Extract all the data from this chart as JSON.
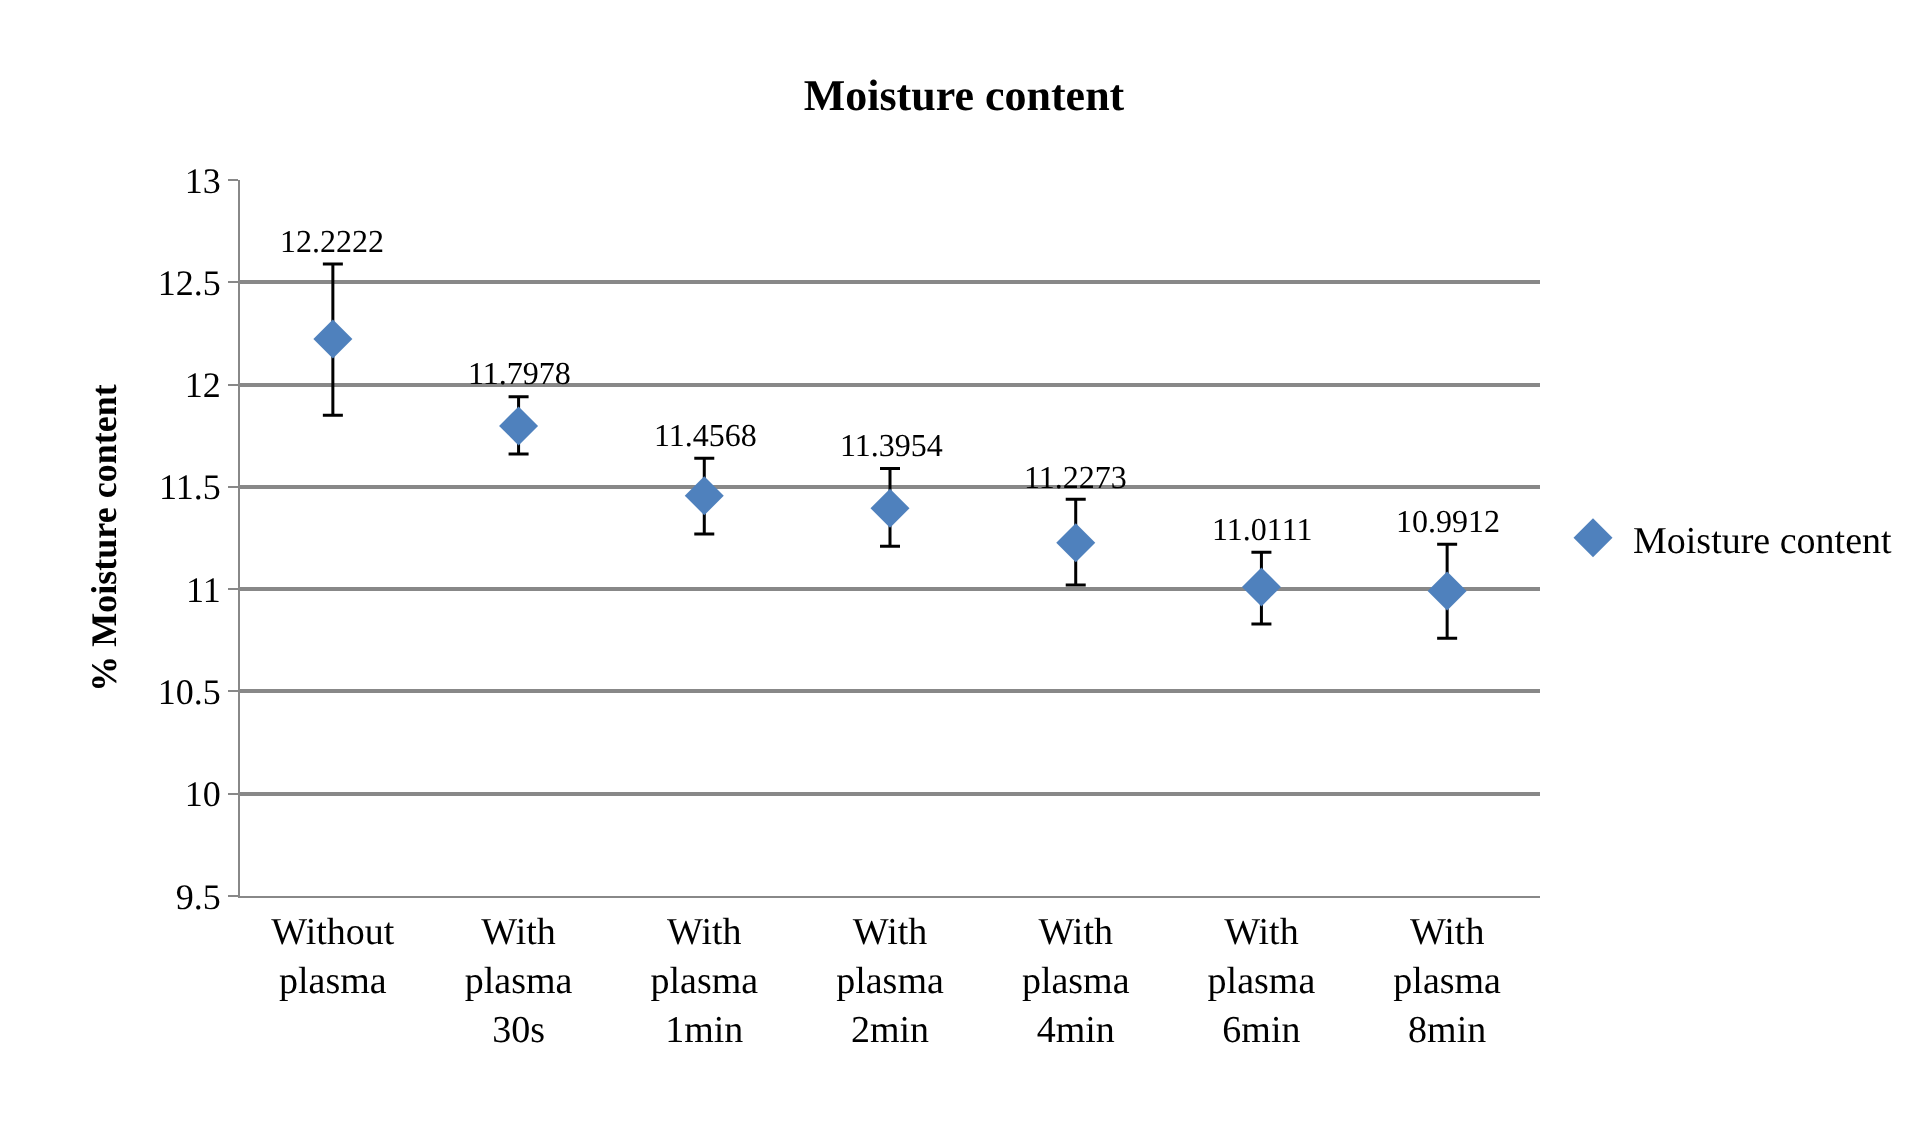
{
  "chart_data": {
    "type": "scatter",
    "title": "Moisture content",
    "ylabel": "% Moisture content",
    "categories": [
      "Without plasma",
      "With plasma 30s",
      "With plasma 1min",
      "With plasma 2min",
      "With plasma 4min",
      "With plasma 6min",
      "With plasma 8min"
    ],
    "series": [
      {
        "name": "Moisture content",
        "color": "#4f81bd",
        "values": [
          12.2222,
          11.7978,
          11.4568,
          11.3954,
          11.2273,
          11.0111,
          10.9912
        ],
        "errors": [
          [
            11.85,
            12.59
          ],
          [
            11.66,
            11.94
          ],
          [
            11.27,
            11.64
          ],
          [
            11.21,
            11.59
          ],
          [
            11.02,
            11.44
          ],
          [
            10.83,
            11.18
          ],
          [
            10.76,
            11.22
          ]
        ]
      }
    ],
    "ylim": [
      9.5,
      13
    ],
    "yticks": [
      9.5,
      10,
      10.5,
      11,
      11.5,
      12,
      12.5,
      13
    ],
    "grid": "y",
    "legend": "right",
    "marker": "diamond",
    "data_labels": true
  }
}
